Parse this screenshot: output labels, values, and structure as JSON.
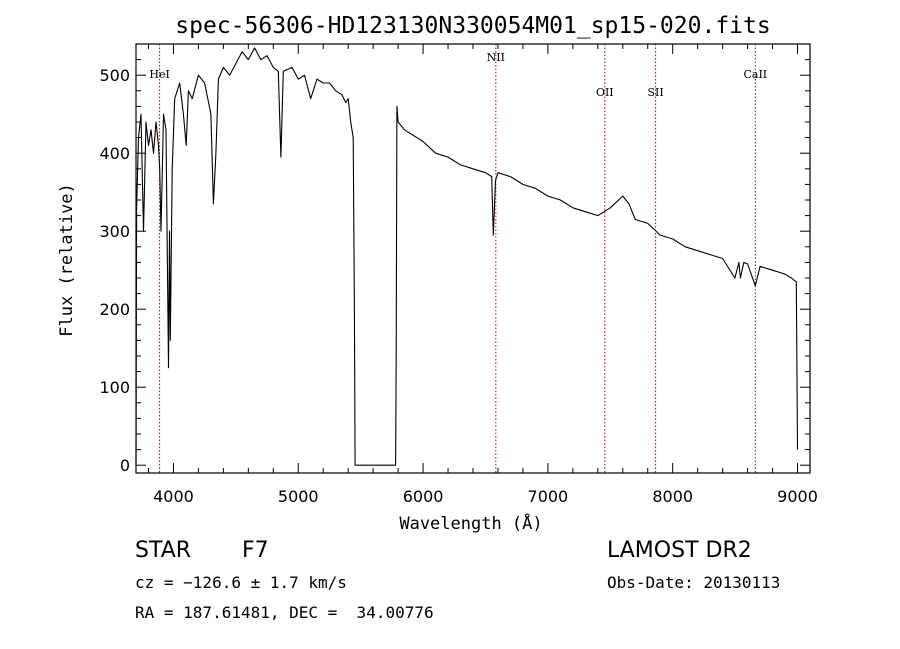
{
  "chart_data": {
    "type": "line",
    "title": "spec-56306-HD123130N330054M01_sp15-020.fits",
    "xlabel": "Wavelength (Å)",
    "ylabel": "Flux (relative)",
    "xlim": [
      3700,
      9100
    ],
    "ylim": [
      -10,
      540
    ],
    "xticks": [
      4000,
      5000,
      6000,
      7000,
      8000,
      9000
    ],
    "yticks": [
      0,
      100,
      200,
      300,
      400,
      500
    ],
    "grid": false,
    "line_color": "#000000",
    "marker_color": "#a01010",
    "series": [
      {
        "x": [
          3700,
          3705,
          3720,
          3740,
          3760,
          3780,
          3800,
          3820,
          3840,
          3860,
          3880,
          3890,
          3900,
          3920,
          3940,
          3960,
          3968,
          3975,
          3990,
          4010,
          4050,
          4080,
          4102,
          4120,
          4150,
          4200,
          4250,
          4300,
          4320,
          4340,
          4360,
          4400,
          4450,
          4500,
          4550,
          4600,
          4650,
          4700,
          4750,
          4800,
          4840,
          4861,
          4880,
          4950,
          5000,
          5050,
          5100,
          5150,
          5200,
          5250,
          5300,
          5350,
          5380,
          5400,
          5420,
          5440,
          5450,
          5455,
          5780,
          5785,
          5790,
          5800,
          5850,
          5900,
          6000,
          6100,
          6200,
          6300,
          6400,
          6500,
          6550,
          6563,
          6580,
          6600,
          6700,
          6800,
          6900,
          7000,
          7100,
          7200,
          7300,
          7400,
          7500,
          7600,
          7650,
          7700,
          7800,
          7900,
          8000,
          8100,
          8200,
          8300,
          8400,
          8498,
          8530,
          8542,
          8570,
          8600,
          8662,
          8700,
          8800,
          8900,
          8950,
          8990,
          9000
        ],
        "y": [
          0,
          330,
          420,
          450,
          300,
          440,
          410,
          430,
          400,
          440,
          410,
          380,
          300,
          450,
          430,
          125,
          300,
          160,
          380,
          470,
          490,
          450,
          410,
          480,
          470,
          500,
          490,
          450,
          335,
          400,
          495,
          510,
          500,
          515,
          530,
          520,
          535,
          520,
          525,
          510,
          505,
          395,
          505,
          510,
          495,
          500,
          470,
          495,
          490,
          490,
          480,
          475,
          465,
          470,
          440,
          420,
          200,
          0,
          0,
          140,
          460,
          440,
          430,
          425,
          415,
          400,
          395,
          385,
          380,
          375,
          370,
          295,
          365,
          375,
          370,
          360,
          355,
          345,
          340,
          330,
          325,
          320,
          330,
          345,
          335,
          315,
          310,
          295,
          290,
          280,
          275,
          270,
          265,
          240,
          260,
          240,
          260,
          258,
          230,
          255,
          250,
          245,
          240,
          235,
          20
        ]
      }
    ],
    "line_markers": [
      {
        "label": "HeI",
        "x": 3889
      },
      {
        "label": "NII",
        "x": 6583
      },
      {
        "label": "OII",
        "x": 7456
      },
      {
        "label": "SII",
        "x": 7863
      },
      {
        "label": "CaII",
        "x": 8662
      }
    ]
  },
  "info": {
    "object_class": "STAR",
    "subclass": "F7",
    "survey": "LAMOST DR2",
    "redshift": "cz = −126.6 ± 1.7 km/s",
    "obs_date": "Obs-Date: 20130113",
    "coordinates": "RA = 187.61481, DEC =  34.00776"
  }
}
